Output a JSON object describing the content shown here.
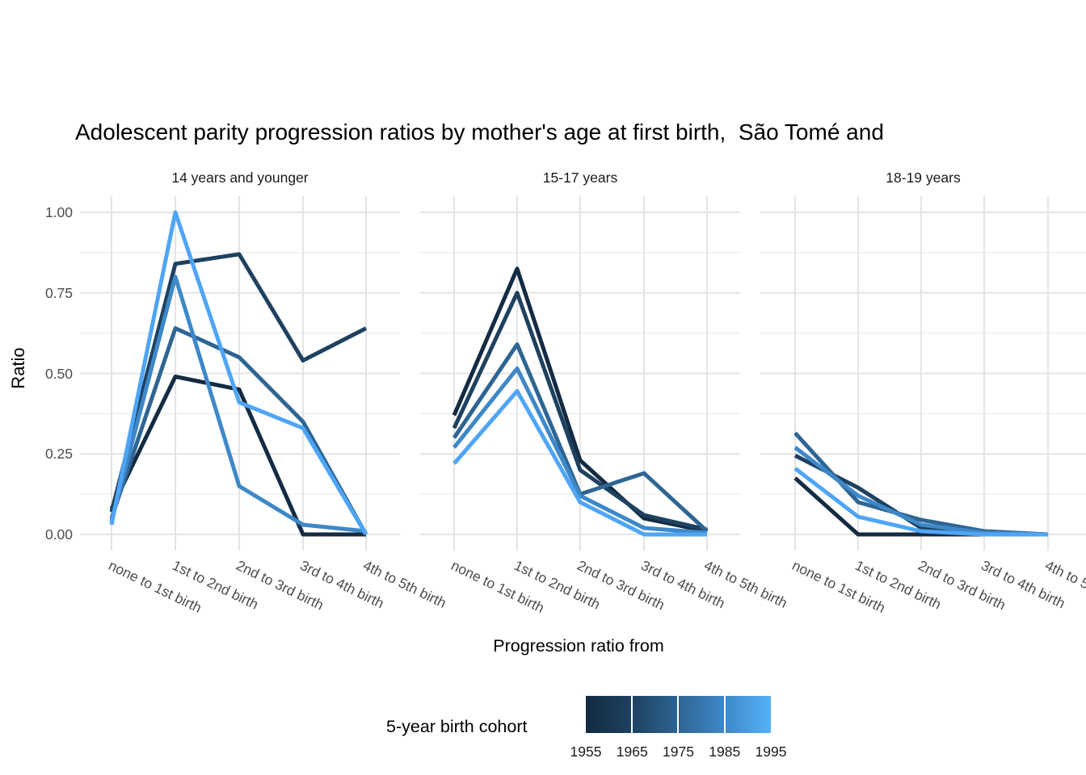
{
  "title": "Adolescent parity progression ratios by mother's age at first birth,  São Tomé and",
  "y_axis": {
    "title": "Ratio",
    "tick_labels": [
      "1.00",
      "0.75",
      "0.50",
      "0.25",
      "0.00"
    ],
    "tick_values": [
      1.0,
      0.75,
      0.5,
      0.25,
      0.0
    ]
  },
  "x_axis": {
    "title": "Progression ratio from"
  },
  "legend": {
    "title": "5-year birth cohort",
    "tick_labels": [
      "1955",
      "1965",
      "1975",
      "1985",
      "1995"
    ],
    "gradient": [
      "#132B43",
      "#1E4160",
      "#2E6593",
      "#3E88C8",
      "#56B1F7"
    ]
  },
  "chart_data": {
    "type": "line",
    "title": "Adolescent parity progression ratios by mother's age at first birth,  São Tomé and",
    "xlabel": "Progression ratio from",
    "ylabel": "Ratio",
    "categories": [
      "none to 1st birth",
      "1st to 2nd birth",
      "2nd to 3rd birth",
      "3rd to 4th birth",
      "4th to 5th birth"
    ],
    "ylim": [
      0,
      1
    ],
    "y_major": [
      0,
      0.25,
      0.5,
      0.75,
      1.0
    ],
    "y_minor": [
      0.125,
      0.375,
      0.625,
      0.875
    ],
    "grid": "horizontal major+minor, vertical major at categories; light gray on white (ggplot theme_minimal)",
    "legend_position": "bottom, continuous colorbar dark-navy to light-blue",
    "color_scale": {
      "variable": "5-year birth cohort",
      "low": "#132B43",
      "high": "#56B1F7"
    },
    "facets": [
      {
        "label": "14 years and younger",
        "series": [
          {
            "name": "1955",
            "color": "#132B43",
            "values": [
              0.08,
              0.49,
              0.45,
              0.0,
              0.0
            ]
          },
          {
            "name": "1965",
            "color": "#1E4160",
            "values": [
              0.07,
              0.84,
              0.87,
              0.54,
              0.64
            ]
          },
          {
            "name": "1975",
            "color": "#2E6593",
            "values": [
              0.05,
              0.64,
              0.55,
              0.35,
              0.0
            ]
          },
          {
            "name": "1985",
            "color": "#3E88C8",
            "values": [
              0.04,
              0.8,
              0.15,
              0.03,
              0.01
            ]
          },
          {
            "name": "1995",
            "color": "#4FA5F5",
            "values": [
              0.03,
              1.0,
              0.41,
              0.33,
              0.0
            ]
          }
        ]
      },
      {
        "label": "15-17 years",
        "series": [
          {
            "name": "1955",
            "color": "#132B43",
            "values": [
              0.37,
              0.825,
              0.23,
              0.05,
              0.01
            ]
          },
          {
            "name": "1965",
            "color": "#1E4160",
            "values": [
              0.33,
              0.75,
              0.2,
              0.06,
              0.015
            ]
          },
          {
            "name": "1975",
            "color": "#2E6593",
            "values": [
              0.3,
              0.59,
              0.125,
              0.19,
              0.01
            ]
          },
          {
            "name": "1985",
            "color": "#3E88C8",
            "values": [
              0.27,
              0.515,
              0.12,
              0.02,
              0.005
            ]
          },
          {
            "name": "1995",
            "color": "#4FA5F5",
            "values": [
              0.22,
              0.445,
              0.1,
              0.0,
              0.0
            ]
          }
        ]
      },
      {
        "label": "18-19 years",
        "series": [
          {
            "name": "1955",
            "color": "#132B43",
            "values": [
              0.175,
              0.0,
              0.0,
              0.0,
              0.0
            ]
          },
          {
            "name": "1965",
            "color": "#1E4160",
            "values": [
              0.245,
              0.145,
              0.02,
              0.005,
              0.0
            ]
          },
          {
            "name": "1975",
            "color": "#2E6593",
            "values": [
              0.315,
              0.1,
              0.045,
              0.01,
              0.0
            ]
          },
          {
            "name": "1985",
            "color": "#3E88C8",
            "values": [
              0.27,
              0.12,
              0.03,
              0.005,
              0.0
            ]
          },
          {
            "name": "1995",
            "color": "#4FA5F5",
            "values": [
              0.205,
              0.055,
              0.01,
              0.0,
              0.0
            ]
          }
        ]
      }
    ]
  }
}
